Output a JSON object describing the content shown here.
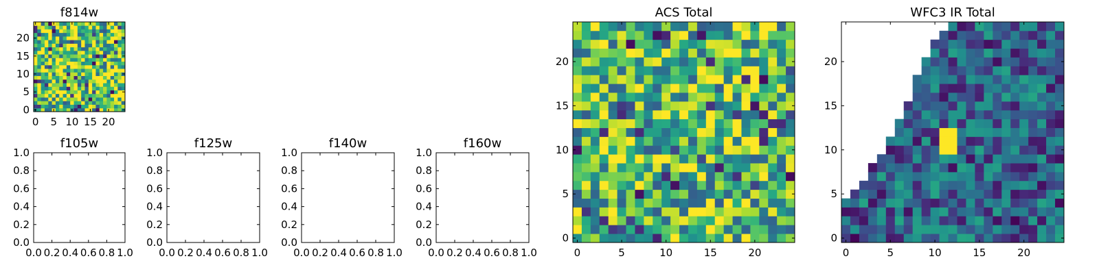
{
  "chart_data": [
    {
      "type": "heatmap",
      "title": "f814w",
      "xlabel": "",
      "ylabel": "",
      "grid_size": 25,
      "xlim": [
        -0.5,
        24.5
      ],
      "ylim": [
        -0.5,
        24.5
      ],
      "xticks": [
        0,
        5,
        10,
        15,
        20
      ],
      "yticks": [
        0,
        5,
        10,
        15,
        20
      ],
      "colormap": "viridis",
      "value_range": [
        0,
        1
      ],
      "mean_level": 0.75,
      "spread": 0.45,
      "seed": 11
    },
    {
      "type": "heatmap",
      "title": "f105w",
      "xlabel": "",
      "ylabel": "",
      "xlim": [
        0.0,
        1.0
      ],
      "ylim": [
        0.0,
        1.0
      ],
      "xticks": [
        "0.0",
        "0.2",
        "0.4",
        "0.6",
        "0.8",
        "1.0"
      ],
      "yticks": [
        "0.0",
        "0.2",
        "0.4",
        "0.6",
        "0.8",
        "1.0"
      ],
      "empty": true
    },
    {
      "type": "heatmap",
      "title": "f125w",
      "xlabel": "",
      "ylabel": "",
      "xlim": [
        0.0,
        1.0
      ],
      "ylim": [
        0.0,
        1.0
      ],
      "xticks": [
        "0.0",
        "0.2",
        "0.4",
        "0.6",
        "0.8",
        "1.0"
      ],
      "yticks": [
        "0.0",
        "0.2",
        "0.4",
        "0.6",
        "0.8",
        "1.0"
      ],
      "empty": true
    },
    {
      "type": "heatmap",
      "title": "f140w",
      "xlabel": "",
      "ylabel": "",
      "xlim": [
        0.0,
        1.0
      ],
      "ylim": [
        0.0,
        1.0
      ],
      "xticks": [
        "0.0",
        "0.2",
        "0.4",
        "0.6",
        "0.8",
        "1.0"
      ],
      "yticks": [
        "0.0",
        "0.2",
        "0.4",
        "0.6",
        "0.8",
        "1.0"
      ],
      "empty": true
    },
    {
      "type": "heatmap",
      "title": "f160w",
      "xlabel": "",
      "ylabel": "",
      "xlim": [
        0.0,
        1.0
      ],
      "ylim": [
        0.0,
        1.0
      ],
      "xticks": [
        "0.0",
        "0.2",
        "0.4",
        "0.6",
        "0.8",
        "1.0"
      ],
      "yticks": [
        "0.0",
        "0.2",
        "0.4",
        "0.6",
        "0.8",
        "1.0"
      ],
      "empty": true
    },
    {
      "type": "heatmap",
      "title": "ACS Total",
      "xlabel": "",
      "ylabel": "",
      "grid_size": 25,
      "xlim": [
        -0.5,
        24.5
      ],
      "ylim": [
        -0.5,
        24.5
      ],
      "xticks": [
        0,
        5,
        10,
        15,
        20
      ],
      "yticks": [
        0,
        5,
        10,
        15,
        20
      ],
      "colormap": "viridis",
      "value_range": [
        0,
        1
      ],
      "mean_level": 0.7,
      "spread": 0.4,
      "seed": 23
    },
    {
      "type": "heatmap",
      "title": "WFC3 IR Total",
      "xlabel": "",
      "ylabel": "",
      "grid_size": 25,
      "xlim": [
        -0.5,
        24.5
      ],
      "ylim": [
        -0.5,
        24.5
      ],
      "xticks": [
        0,
        5,
        10,
        15,
        20
      ],
      "yticks": [
        0,
        5,
        10,
        15,
        20
      ],
      "colormap": "viridis",
      "value_range": [
        0,
        1
      ],
      "mean_level": 0.32,
      "spread": 0.28,
      "seed": 37,
      "masked_region": "upper-left triangle",
      "mask_boundary": [
        [
          0,
          4
        ],
        [
          1,
          5
        ],
        [
          2,
          6
        ],
        [
          3,
          8
        ],
        [
          4,
          9
        ],
        [
          5,
          11
        ],
        [
          6,
          13
        ],
        [
          7,
          15
        ],
        [
          8,
          18
        ],
        [
          9,
          20
        ],
        [
          10,
          22
        ],
        [
          11,
          23
        ],
        [
          12,
          24
        ],
        [
          13,
          24
        ],
        [
          14,
          24
        ],
        [
          15,
          24
        ],
        [
          16,
          24
        ],
        [
          17,
          24
        ],
        [
          18,
          24
        ],
        [
          19,
          24
        ],
        [
          20,
          24
        ],
        [
          21,
          24
        ],
        [
          22,
          24
        ],
        [
          23,
          24
        ],
        [
          24,
          24
        ]
      ],
      "hotspot": {
        "x": [
          11,
          12
        ],
        "y": [
          10,
          12
        ],
        "value": 1.0
      }
    }
  ]
}
